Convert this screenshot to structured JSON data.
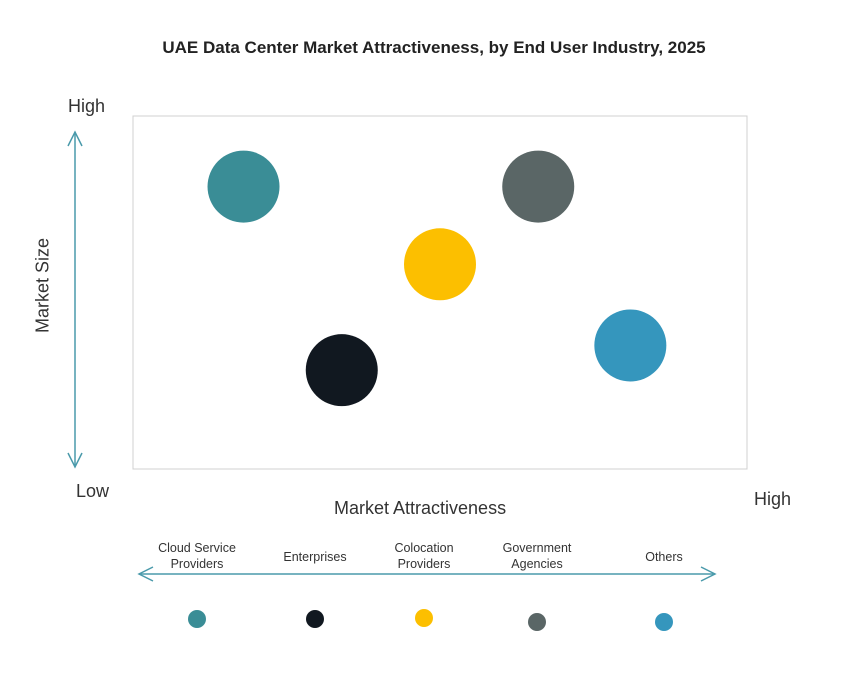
{
  "chart_data": {
    "type": "scatter",
    "title": "UAE Data Center Market Attractiveness,  by End User Industry, 2025",
    "xlabel": "Market Attractiveness",
    "ylabel": "Market Size",
    "x_low_label": "Low",
    "x_high_label": "High",
    "y_high_label": "High",
    "xlim": [
      0,
      10
    ],
    "ylim": [
      0,
      10
    ],
    "grid": false,
    "legend_placement": "bottom",
    "points": [
      {
        "name": "Cloud Service Providers",
        "x": 1.8,
        "y": 8.0,
        "color": "#3a8d96"
      },
      {
        "name": "Enterprises",
        "x": 3.4,
        "y": 2.8,
        "color": "#111820"
      },
      {
        "name": "Colocation Providers",
        "x": 5.0,
        "y": 5.8,
        "color": "#fcbf00"
      },
      {
        "name": "Government Agencies",
        "x": 6.6,
        "y": 8.0,
        "color": "#5a6666"
      },
      {
        "name": "Others",
        "x": 8.1,
        "y": 3.5,
        "color": "#3596bd"
      }
    ],
    "legend": [
      {
        "line1": "Cloud Service",
        "line2": "Providers"
      },
      {
        "line1": "Enterprises",
        "line2": ""
      },
      {
        "line1": "Colocation",
        "line2": "Providers"
      },
      {
        "line1": "Government",
        "line2": "Agencies"
      },
      {
        "line1": "Others",
        "line2": ""
      }
    ],
    "axis_arrow_color": "#4a9aab"
  }
}
